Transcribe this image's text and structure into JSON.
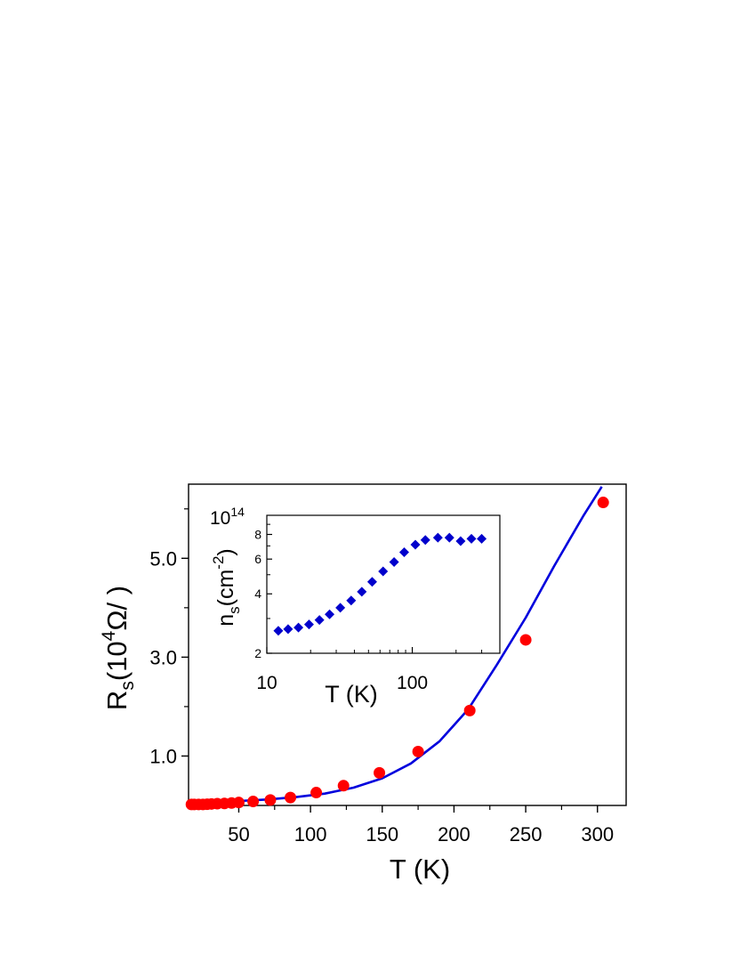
{
  "chart_data": [
    {
      "type": "scatter",
      "xlabel": "T (K)",
      "ylabel": {
        "main": "R",
        "sub": "s",
        "open": "(10",
        "sup": "4",
        "unit": "Ω/ )"
      },
      "xlim": [
        15,
        320
      ],
      "ylim": [
        0,
        6.5
      ],
      "xticks": [
        50,
        100,
        150,
        200,
        250,
        300
      ],
      "yticks": [
        1.0,
        3.0,
        5.0
      ],
      "ytick_labels": [
        "1.0",
        "3.0",
        "5.0"
      ],
      "yminor": [
        2.0,
        4.0,
        6.0
      ],
      "series": [
        {
          "kind": "points",
          "marker": "circle",
          "color": "#ff0000",
          "x": [
            17,
            19,
            22,
            25,
            28,
            31,
            35,
            40,
            45,
            50,
            60,
            72,
            86,
            104,
            123,
            148,
            175,
            211,
            250,
            304
          ],
          "y": [
            0.02,
            0.02,
            0.02,
            0.02,
            0.025,
            0.03,
            0.035,
            0.04,
            0.05,
            0.06,
            0.08,
            0.11,
            0.16,
            0.26,
            0.4,
            0.66,
            1.09,
            1.92,
            3.35,
            6.13
          ]
        },
        {
          "kind": "fit-line",
          "color": "#0000dd",
          "x": [
            17,
            30,
            50,
            70,
            90,
            110,
            130,
            150,
            170,
            190,
            210,
            230,
            250,
            270,
            290,
            303
          ],
          "y": [
            0.07,
            0.08,
            0.09,
            0.12,
            0.17,
            0.24,
            0.36,
            0.55,
            0.85,
            1.3,
            1.95,
            2.85,
            3.8,
            4.85,
            5.85,
            6.45
          ]
        }
      ]
    },
    {
      "type": "scatter",
      "inset": true,
      "xlabel": "T (K)",
      "ylabel": {
        "main": "n",
        "sub": "s",
        "open": "(cm",
        "sup": "-2",
        "close": ")"
      },
      "x_scale": "log",
      "y_scale": "log",
      "xlim": [
        10,
        400
      ],
      "ylim": [
        2,
        10
      ],
      "xticks": [
        10,
        100
      ],
      "xtick_labels": [
        "10",
        "100"
      ],
      "yticks": [
        2,
        4,
        6,
        8
      ],
      "ytick_labels": [
        "2",
        "4",
        "6",
        "8"
      ],
      "ytop_label": {
        "base": "10",
        "sup": "14"
      },
      "series": [
        {
          "kind": "points",
          "marker": "diamond",
          "color": "#0000cc",
          "x": [
            12,
            14,
            16.5,
            19.5,
            23,
            27,
            32,
            38,
            45,
            53,
            63,
            75,
            88,
            105,
            123,
            150,
            180,
            215,
            255,
            300
          ],
          "y": [
            2.6,
            2.65,
            2.7,
            2.8,
            2.95,
            3.15,
            3.4,
            3.7,
            4.1,
            4.6,
            5.2,
            5.8,
            6.5,
            7.1,
            7.5,
            7.7,
            7.7,
            7.4,
            7.6,
            7.6
          ]
        }
      ]
    }
  ]
}
